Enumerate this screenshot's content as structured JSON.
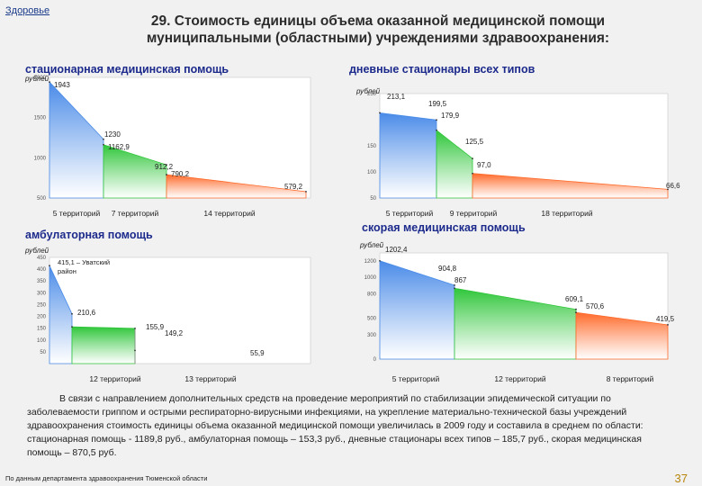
{
  "header": {
    "tag": "Здоровье",
    "title": "29. Стоимость единицы объема оказанной медицинской помощи муниципальными (областными) учреждениями здравоохранения:"
  },
  "chart_data": [
    {
      "type": "area",
      "title": "стационарная медицинская помощь",
      "ylabel": "рублей",
      "ylim": [
        500,
        2000
      ],
      "yticks": [
        500,
        1000,
        1500,
        2000
      ],
      "categories": [
        "5 территорий",
        "7 территорий",
        "14 территорий"
      ],
      "colors": [
        "#4a8be8",
        "#2fc63a",
        "#ff6a2a"
      ],
      "points": [
        {
          "label": "1943",
          "y": 1943
        },
        {
          "label": "1230",
          "y": 1230
        },
        {
          "label": "1162,9",
          "y": 1162.9
        },
        {
          "label": "912,2",
          "y": 912.2
        },
        {
          "label": "790,2",
          "y": 790.2
        },
        {
          "label": "579,2",
          "y": 579.2
        }
      ]
    },
    {
      "type": "area",
      "title": "дневные стационары всех типов",
      "ylabel": "рублей",
      "ylim": [
        50,
        250
      ],
      "yticks": [
        50,
        100,
        150,
        250
      ],
      "categories": [
        "5 территорий",
        "9 территорий",
        "18 территорий"
      ],
      "colors": [
        "#4a8be8",
        "#2fc63a",
        "#ff6a2a"
      ],
      "points": [
        {
          "label": "213,1",
          "y": 213.1
        },
        {
          "label": "199,5",
          "y": 199.5
        },
        {
          "label": "179,9",
          "y": 179.9
        },
        {
          "label": "125,5",
          "y": 125.5
        },
        {
          "label": "97,0",
          "y": 97.0
        },
        {
          "label": "66,6",
          "y": 66.6
        }
      ]
    },
    {
      "type": "area",
      "title": "амбулаторная помощь",
      "ylabel": "рублей",
      "ylim": [
        0,
        450
      ],
      "yticks": [
        50,
        100,
        150,
        200,
        250,
        300,
        350,
        400,
        450
      ],
      "categories": [
        "12 территорий",
        "13 территорий"
      ],
      "colors": [
        "#4a8be8",
        "#2fc63a"
      ],
      "annotation": "415,1 – Уватский район",
      "points": [
        {
          "label": "415,1",
          "y": 415.1,
          "hide_label": true
        },
        {
          "label": "210,6",
          "y": 210.6
        },
        {
          "label": "155,9",
          "y": 155.9
        },
        {
          "label": "149,2",
          "y": 149.2
        },
        {
          "label": "55,9",
          "y": 55.9
        }
      ]
    },
    {
      "type": "area",
      "title": "скорая медицинская помощь",
      "ylabel": "рублей",
      "ylim": [
        0,
        1300
      ],
      "yticks": [
        0,
        300,
        500,
        800,
        1000,
        1200
      ],
      "categories": [
        "5 территорий",
        "12 территорий",
        "8 территорий"
      ],
      "colors": [
        "#4a8be8",
        "#2fc63a",
        "#ff6a2a"
      ],
      "points": [
        {
          "label": "1202,4",
          "y": 1202.4
        },
        {
          "label": "904,8",
          "y": 904.8
        },
        {
          "label": "867",
          "y": 867
        },
        {
          "label": "609,1",
          "y": 609.1
        },
        {
          "label": "570,6",
          "y": 570.6
        },
        {
          "label": "419,5",
          "y": 419.5
        }
      ]
    }
  ],
  "footer": {
    "paragraph": "В связи с направлением дополнительных средств на проведение мероприятий по стабилизации эпидемической ситуации по заболеваемости гриппом и острыми респираторно-вирусными инфекциями, на укрепление материально-технической базы учреждений здравоохранения стоимость единицы объема оказанной медицинской помощи увеличилась в 2009 году и составила в среднем по области: стационарная помощь - 1189,8 руб., амбулаторная помощь – 153,3 руб., дневные стационары всех типов – 185,7 руб., скорая медицинская помощь – 870,5 руб.",
    "source": "По данным департамента здравоохранения Тюменской области",
    "page": "37"
  }
}
